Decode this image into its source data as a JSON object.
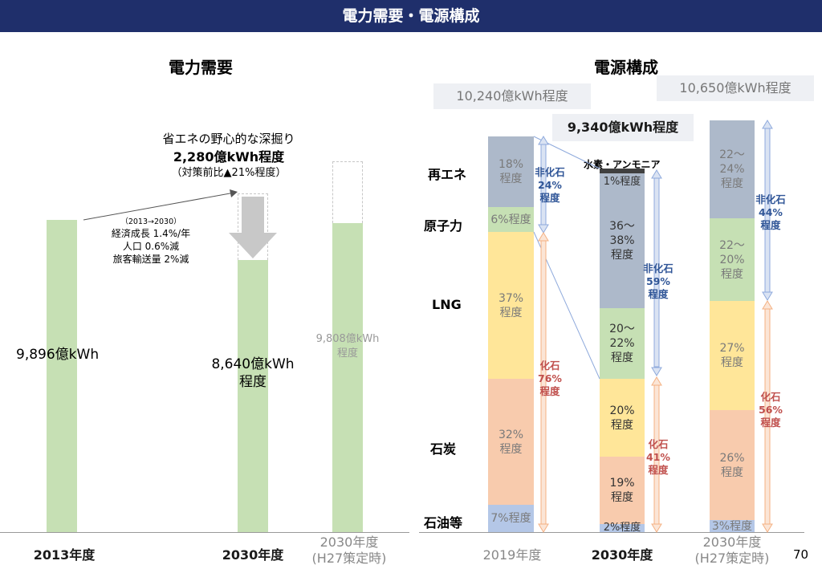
{
  "header": {
    "title": "電力需要・電源構成"
  },
  "demand": {
    "title": "電力需要",
    "bars": [
      {
        "year": "2013年度",
        "value_label": "9,896億kWh",
        "value": 9896
      },
      {
        "year": "2030年度",
        "value_label": "8,640億kWh\n程度",
        "value": 8640
      },
      {
        "year": "2030年度\n(H27策定時)",
        "value_label": "9,808億kWh\n程度",
        "value": 9808
      }
    ],
    "savings": {
      "line1": "省エネの野心的な深掘り",
      "line2": "2,280億kWh程度",
      "line3": "（対策前比▲21%程度）",
      "value": 2280
    },
    "assumptions": {
      "line1": "（2013→2030）",
      "line2": "経済成長 1.4%/年",
      "line3": "人口 0.6%減",
      "line4": "旅客輸送量  2%減"
    }
  },
  "mix": {
    "title": "電源構成",
    "fuel_labels": [
      "再エネ",
      "原子力",
      "LNG",
      "石炭",
      "石油等"
    ],
    "totals": {
      "y2019": "10,240億kWh程度",
      "y2030": "9,340億kWh程度",
      "h27": "10,650億kWh程度"
    },
    "h2_label": "水素・アンモニア",
    "years": [
      "2019年度",
      "2030年度",
      "2030年度\n(H27策定時)"
    ],
    "segments_2019": [
      "18%\n程度",
      "6%程度",
      "37%\n程度",
      "32%\n程度",
      "7%程度"
    ],
    "segments_2030": [
      "1%程度",
      "36～38%\n程度",
      "20～22%\n程度",
      "20%\n程度",
      "19%\n程度",
      "2%程度"
    ],
    "segments_h27": [
      "22～24%\n程度",
      "22～20%\n程度",
      "27%\n程度",
      "26%\n程度",
      "3%程度"
    ],
    "groups": {
      "nonfossil_2019": "非化石\n24%\n程度",
      "fossil_2019": "化石\n76%\n程度",
      "nonfossil_2030": "非化石\n59%\n程度",
      "fossil_2030": "化石\n41%\n程度",
      "nonfossil_h27": "非化石\n44%\n程度",
      "fossil_h27": "化石\n56%\n程度"
    }
  },
  "page_number": "70",
  "colors": {
    "title_bar": "#1f2f6b",
    "demand_bar": "#c6e0b4",
    "renewable": "#adb9ca",
    "nuclear": "#c6e0b4",
    "lng": "#ffe699",
    "coal": "#f8cbad",
    "oil": "#b4c7e7",
    "h2": "#404040",
    "nonfossil_text": "#2f5597",
    "fossil_text": "#c0504d"
  },
  "chart_data": [
    {
      "type": "bar",
      "title": "電力需要",
      "categories": [
        "2013年度",
        "2030年度",
        "2030年度(H27策定時)"
      ],
      "values": [
        9896,
        8640,
        9808
      ],
      "unit": "億kWh"
    },
    {
      "type": "bar",
      "title": "電源構成",
      "categories": [
        "2019年度",
        "2030年度",
        "2030年度(H27策定時)"
      ],
      "totals": [
        10240,
        9340,
        10650
      ],
      "unit": "億kWh",
      "series": [
        {
          "name": "再エネ",
          "values": [
            18,
            37,
            23
          ]
        },
        {
          "name": "原子力",
          "values": [
            6,
            21,
            21
          ]
        },
        {
          "name": "LNG",
          "values": [
            37,
            20,
            27
          ]
        },
        {
          "name": "石炭",
          "values": [
            32,
            19,
            26
          ]
        },
        {
          "name": "石油等",
          "values": [
            7,
            2,
            3
          ]
        },
        {
          "name": "水素・アンモニア",
          "values": [
            0,
            1,
            0
          ]
        }
      ]
    }
  ]
}
